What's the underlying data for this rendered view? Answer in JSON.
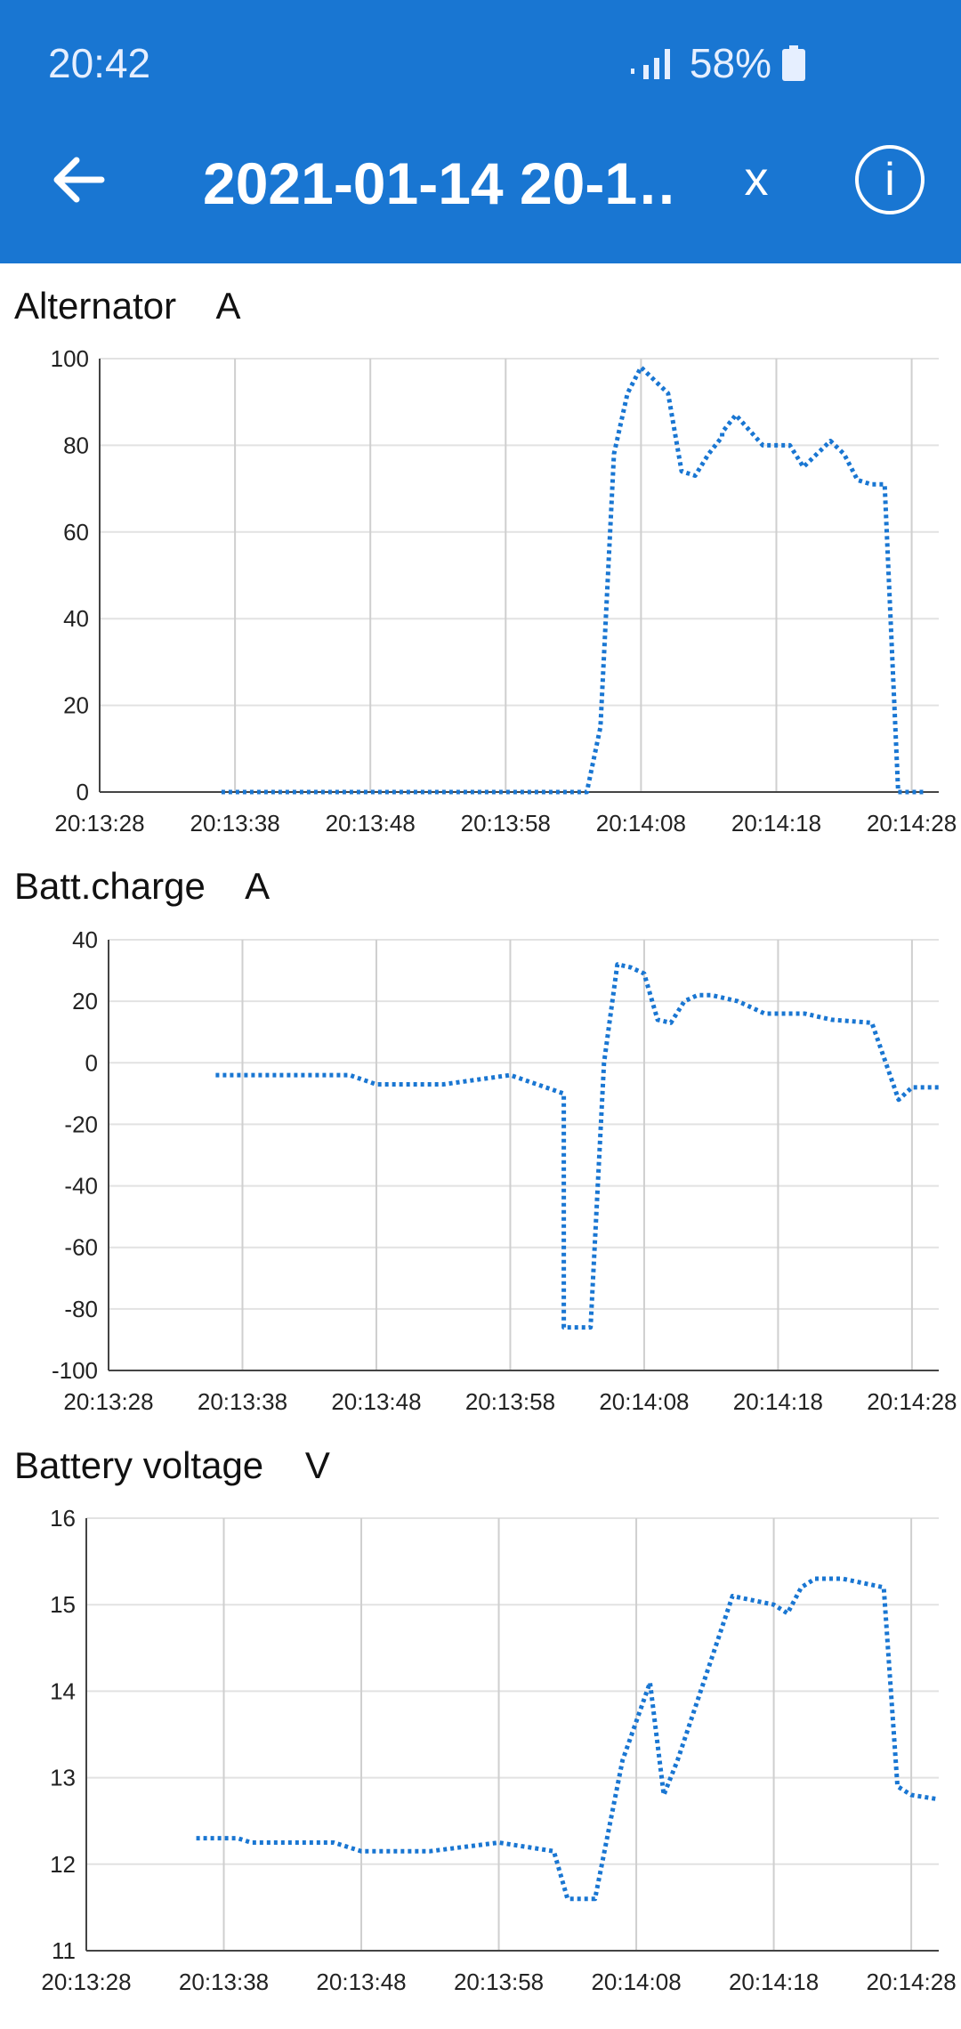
{
  "status_bar": {
    "time": "20:42",
    "battery": "58%"
  },
  "toolbar": {
    "title": "2021-01-14 20-1…",
    "close_label": "x",
    "info_label": "i"
  },
  "charts": [
    {
      "label": "Alternator    A"
    },
    {
      "label": "Batt.charge    A"
    },
    {
      "label": "Battery voltage    V"
    }
  ],
  "chart_data": [
    {
      "type": "line",
      "title": "Alternator    A",
      "ylim": [
        0,
        100
      ],
      "yticks": [
        "0",
        "20",
        "40",
        "60",
        "80",
        "100"
      ],
      "xticks": [
        "20:13:28",
        "20:13:38",
        "20:13:48",
        "20:13:58",
        "20:14:08",
        "20:14:18",
        "20:14:28"
      ],
      "xlim": [
        "20:13:28",
        "20:14:30"
      ],
      "grid": true,
      "color": "#1976d2",
      "series": [
        {
          "x": [
            "20:13:37",
            "20:13:47",
            "20:13:57",
            "20:14:04",
            "20:14:05",
            "20:14:06",
            "20:14:07",
            "20:14:08",
            "20:14:09",
            "20:14:10",
            "20:14:11",
            "20:14:12",
            "20:14:13",
            "20:14:14",
            "20:14:14",
            "20:14:15",
            "20:14:17",
            "20:14:18",
            "20:14:19",
            "20:14:20",
            "20:14:21",
            "20:14:22",
            "20:14:23",
            "20:14:24",
            "20:14:25",
            "20:14:26",
            "20:14:27",
            "20:14:29"
          ],
          "values": [
            0,
            0,
            0,
            0,
            15,
            78,
            92,
            98,
            95,
            92,
            74,
            73,
            78,
            82,
            83,
            87,
            80,
            80,
            80,
            75,
            78,
            81,
            78,
            72,
            71,
            71,
            0,
            0
          ]
        }
      ]
    },
    {
      "type": "line",
      "title": "Batt.charge    A",
      "ylim": [
        -100,
        40
      ],
      "yticks": [
        "-100",
        "-80",
        "-60",
        "-40",
        "-20",
        "0",
        "20",
        "40"
      ],
      "xticks": [
        "20:13:28",
        "20:13:38",
        "20:13:48",
        "20:13:58",
        "20:14:08",
        "20:14:18",
        "20:14:28"
      ],
      "xlim": [
        "20:13:28",
        "20:14:30"
      ],
      "grid": true,
      "color": "#1976d2",
      "series": [
        {
          "x": [
            "20:13:36",
            "20:13:41",
            "20:13:46",
            "20:13:48",
            "20:13:53",
            "20:13:58",
            "20:14:02",
            "20:14:02",
            "20:14:04",
            "20:14:05",
            "20:14:06",
            "20:14:07",
            "20:14:08",
            "20:14:09",
            "20:14:10",
            "20:14:11",
            "20:14:12",
            "20:14:13",
            "20:14:15",
            "20:14:17",
            "20:14:20",
            "20:14:22",
            "20:14:25",
            "20:14:27",
            "20:14:28",
            "20:14:30"
          ],
          "values": [
            -4,
            -4,
            -4,
            -7,
            -7,
            -4,
            -10,
            -86,
            -86,
            0,
            32,
            31,
            29,
            14,
            13,
            20,
            22,
            22,
            20,
            16,
            16,
            14,
            13,
            -12,
            -8,
            -8
          ]
        }
      ]
    },
    {
      "type": "line",
      "title": "Battery voltage    V",
      "ylim": [
        11,
        16
      ],
      "yticks": [
        "11",
        "12",
        "13",
        "14",
        "15",
        "16"
      ],
      "xticks": [
        "20:13:28",
        "20:13:38",
        "20:13:48",
        "20:13:58",
        "20:14:08",
        "20:14:18",
        "20:14:28"
      ],
      "xlim": [
        "20:13:28",
        "20:14:30"
      ],
      "grid": true,
      "color": "#1976d2",
      "series": [
        {
          "x": [
            "20:13:36",
            "20:13:39",
            "20:13:40",
            "20:13:46",
            "20:13:48",
            "20:13:53",
            "20:13:58",
            "20:14:02",
            "20:14:03",
            "20:14:05",
            "20:14:07",
            "20:14:09",
            "20:14:10",
            "20:14:11",
            "20:14:15",
            "20:14:18",
            "20:14:19",
            "20:14:20",
            "20:14:21",
            "20:14:23",
            "20:14:26",
            "20:14:27",
            "20:14:28",
            "20:14:30"
          ],
          "values": [
            12.3,
            12.3,
            12.25,
            12.25,
            12.15,
            12.15,
            12.25,
            12.15,
            11.6,
            11.6,
            13.2,
            14.1,
            12.8,
            13.2,
            15.1,
            15.0,
            14.9,
            15.2,
            15.3,
            15.3,
            15.2,
            12.9,
            12.8,
            12.75
          ]
        }
      ]
    }
  ]
}
